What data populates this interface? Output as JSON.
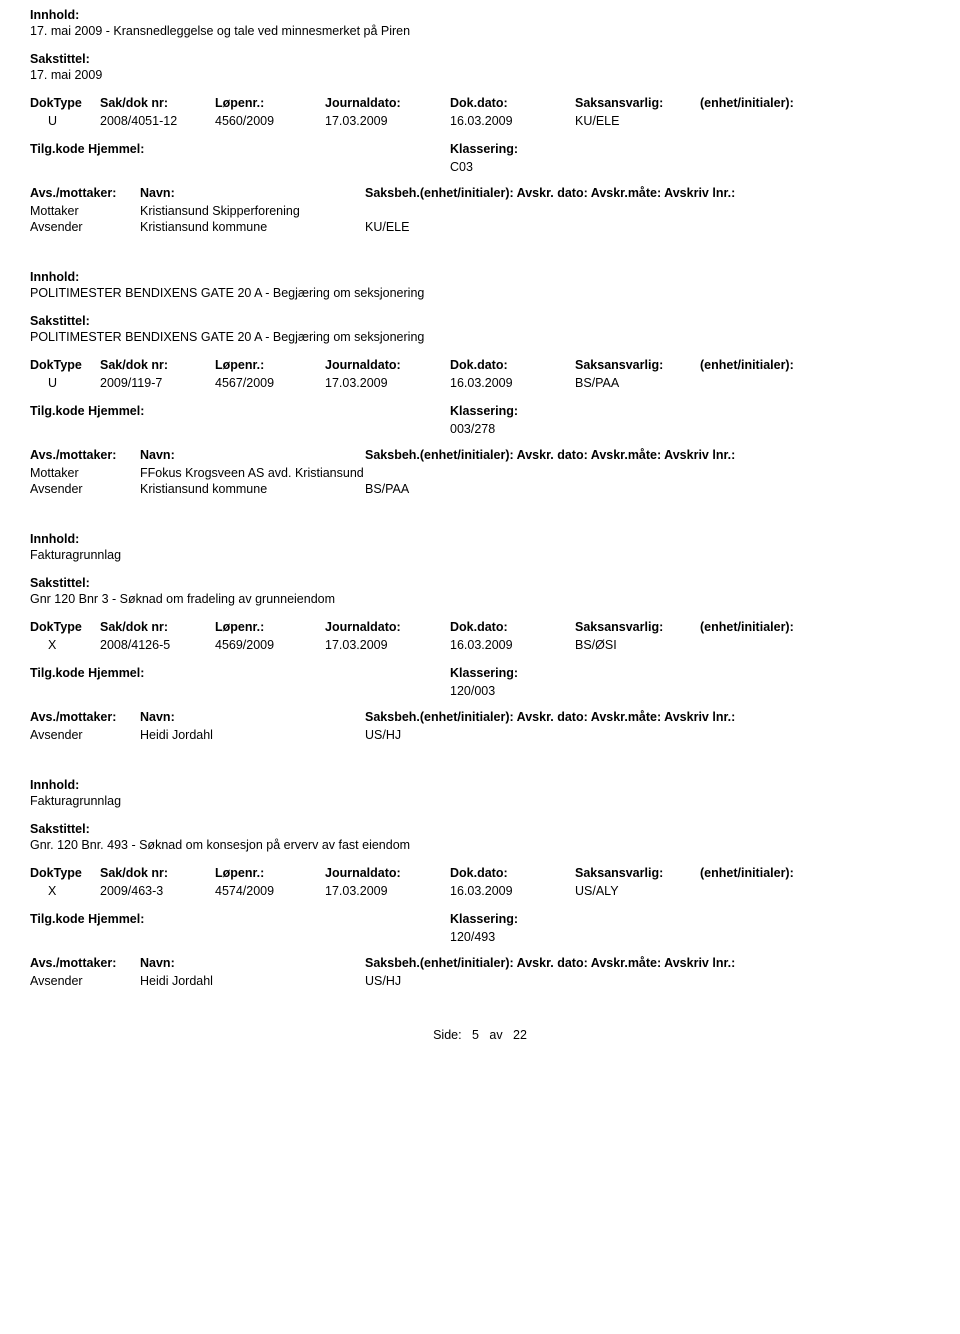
{
  "labels": {
    "innhold": "Innhold:",
    "sakstittel": "Sakstittel:",
    "doktype": "DokType",
    "sakdoknr": "Sak/dok nr:",
    "lopenr": "Løpenr.:",
    "journaldato": "Journaldato:",
    "dokdato": "Dok.dato:",
    "saksansvarlig": "Saksansvarlig:",
    "enhet": "(enhet/initialer):",
    "tilg": "Tilg.kode",
    "hjemmel": "Hjemmel:",
    "klassering": "Klassering:",
    "avsmottaker": "Avs./mottaker:",
    "navn": "Navn:",
    "saksbeh_full": "Saksbeh.(enhet/initialer): Avskr. dato: Avskr.måte: Avskriv lnr.:",
    "mottaker": "Mottaker",
    "avsender": "Avsender"
  },
  "records": [
    {
      "innhold": "17. mai 2009 - Kransnedleggelse og tale ved minnesmerket på Piren",
      "sakstittel": "17. mai 2009",
      "doktype": "U",
      "sakdoknr": "2008/4051-12",
      "lopenr": "4560/2009",
      "journaldato": "17.03.2009",
      "dokdato": "16.03.2009",
      "saksansvarlig": "KU/ELE",
      "klassering": "C03",
      "parties": [
        {
          "role": "Mottaker",
          "navn": "Kristiansund Skipperforening",
          "code": ""
        },
        {
          "role": "Avsender",
          "navn": "Kristiansund kommune",
          "code": "KU/ELE"
        }
      ]
    },
    {
      "innhold": "POLITIMESTER BENDIXENS GATE 20 A - Begjæring om seksjonering",
      "sakstittel": "POLITIMESTER BENDIXENS GATE 20 A - Begjæring om seksjonering",
      "doktype": "U",
      "sakdoknr": "2009/119-7",
      "lopenr": "4567/2009",
      "journaldato": "17.03.2009",
      "dokdato": "16.03.2009",
      "saksansvarlig": "BS/PAA",
      "klassering": "003/278",
      "parties": [
        {
          "role": "Mottaker",
          "navn": "FFokus Krogsveen AS avd. Kristiansund",
          "code": ""
        },
        {
          "role": "Avsender",
          "navn": "Kristiansund kommune",
          "code": "BS/PAA"
        }
      ]
    },
    {
      "innhold": "Fakturagrunnlag",
      "sakstittel": "Gnr 120 Bnr 3 - Søknad om fradeling av grunneiendom",
      "doktype": "X",
      "sakdoknr": "2008/4126-5",
      "lopenr": "4569/2009",
      "journaldato": "17.03.2009",
      "dokdato": "16.03.2009",
      "saksansvarlig": "BS/ØSI",
      "klassering": "120/003",
      "parties": [
        {
          "role": "Avsender",
          "navn": "Heidi Jordahl",
          "code": "US/HJ"
        }
      ]
    },
    {
      "innhold": "Fakturagrunnlag",
      "sakstittel": "Gnr. 120 Bnr. 493 - Søknad om konsesjon på erverv av fast eiendom",
      "doktype": "X",
      "sakdoknr": "2009/463-3",
      "lopenr": "4574/2009",
      "journaldato": "17.03.2009",
      "dokdato": "16.03.2009",
      "saksansvarlig": "US/ALY",
      "klassering": "120/493",
      "parties": [
        {
          "role": "Avsender",
          "navn": "Heidi Jordahl",
          "code": "US/HJ"
        }
      ]
    }
  ],
  "footer": {
    "side_label": "Side:",
    "page": "5",
    "av": "av",
    "total": "22"
  }
}
